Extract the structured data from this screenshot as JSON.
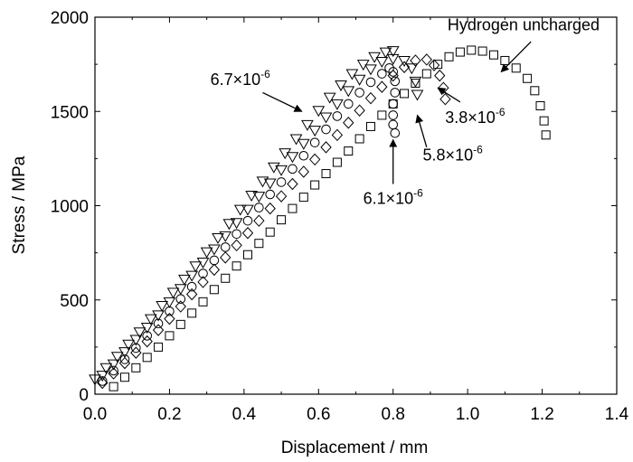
{
  "chart_data": {
    "type": "scatter",
    "title": "",
    "xlabel": "Displacement / mm",
    "ylabel": "Stress / MPa",
    "xlim": [
      0.0,
      1.4
    ],
    "ylim": [
      0,
      2000
    ],
    "x_ticks": [
      "0.0",
      "0.2",
      "0.4",
      "0.6",
      "0.8",
      "1.0",
      "1.2",
      "1.4"
    ],
    "y_ticks": [
      "0",
      "500",
      "1000",
      "1500",
      "2000"
    ],
    "grid": false,
    "legend": "none",
    "series": [
      {
        "id": "uncharged",
        "marker": "square",
        "points": [
          [
            0.05,
            40
          ],
          [
            0.08,
            90
          ],
          [
            0.11,
            140
          ],
          [
            0.14,
            195
          ],
          [
            0.17,
            250
          ],
          [
            0.2,
            310
          ],
          [
            0.23,
            370
          ],
          [
            0.26,
            430
          ],
          [
            0.29,
            490
          ],
          [
            0.32,
            555
          ],
          [
            0.35,
            615
          ],
          [
            0.38,
            680
          ],
          [
            0.41,
            740
          ],
          [
            0.44,
            800
          ],
          [
            0.47,
            860
          ],
          [
            0.5,
            925
          ],
          [
            0.53,
            985
          ],
          [
            0.56,
            1045
          ],
          [
            0.59,
            1110
          ],
          [
            0.62,
            1170
          ],
          [
            0.65,
            1230
          ],
          [
            0.68,
            1290
          ],
          [
            0.71,
            1355
          ],
          [
            0.74,
            1420
          ],
          [
            0.77,
            1480
          ],
          [
            0.8,
            1540
          ],
          [
            0.83,
            1595
          ],
          [
            0.86,
            1650
          ],
          [
            0.89,
            1700
          ],
          [
            0.92,
            1750
          ],
          [
            0.95,
            1790
          ],
          [
            0.98,
            1815
          ],
          [
            1.01,
            1825
          ],
          [
            1.04,
            1820
          ],
          [
            1.07,
            1800
          ],
          [
            1.1,
            1770
          ],
          [
            1.13,
            1730
          ],
          [
            1.16,
            1675
          ],
          [
            1.18,
            1610
          ],
          [
            1.195,
            1530
          ],
          [
            1.205,
            1450
          ],
          [
            1.21,
            1375
          ]
        ]
      },
      {
        "id": "h3.8",
        "marker": "diamond",
        "points": [
          [
            0.02,
            60
          ],
          [
            0.05,
            110
          ],
          [
            0.08,
            165
          ],
          [
            0.11,
            220
          ],
          [
            0.14,
            280
          ],
          [
            0.17,
            340
          ],
          [
            0.2,
            400
          ],
          [
            0.23,
            465
          ],
          [
            0.26,
            530
          ],
          [
            0.29,
            595
          ],
          [
            0.32,
            660
          ],
          [
            0.35,
            725
          ],
          [
            0.38,
            790
          ],
          [
            0.41,
            855
          ],
          [
            0.44,
            920
          ],
          [
            0.47,
            985
          ],
          [
            0.5,
            1050
          ],
          [
            0.53,
            1115
          ],
          [
            0.56,
            1180
          ],
          [
            0.59,
            1245
          ],
          [
            0.62,
            1310
          ],
          [
            0.65,
            1375
          ],
          [
            0.68,
            1440
          ],
          [
            0.71,
            1505
          ],
          [
            0.74,
            1570
          ],
          [
            0.77,
            1630
          ],
          [
            0.8,
            1690
          ],
          [
            0.83,
            1735
          ],
          [
            0.86,
            1770
          ],
          [
            0.89,
            1775
          ],
          [
            0.91,
            1745
          ],
          [
            0.925,
            1690
          ],
          [
            0.935,
            1625
          ],
          [
            0.94,
            1565
          ]
        ]
      },
      {
        "id": "h5.8",
        "marker": "triangle-down",
        "points": [
          [
            0.02,
            100
          ],
          [
            0.05,
            160
          ],
          [
            0.08,
            225
          ],
          [
            0.11,
            290
          ],
          [
            0.14,
            355
          ],
          [
            0.17,
            420
          ],
          [
            0.2,
            490
          ],
          [
            0.23,
            560
          ],
          [
            0.26,
            630
          ],
          [
            0.29,
            700
          ],
          [
            0.32,
            770
          ],
          [
            0.35,
            840
          ],
          [
            0.38,
            910
          ],
          [
            0.41,
            980
          ],
          [
            0.44,
            1050
          ],
          [
            0.47,
            1120
          ],
          [
            0.5,
            1190
          ],
          [
            0.53,
            1260
          ],
          [
            0.56,
            1330
          ],
          [
            0.59,
            1400
          ],
          [
            0.62,
            1470
          ],
          [
            0.65,
            1540
          ],
          [
            0.68,
            1610
          ],
          [
            0.71,
            1670
          ],
          [
            0.74,
            1725
          ],
          [
            0.77,
            1765
          ],
          [
            0.8,
            1780
          ],
          [
            0.83,
            1770
          ],
          [
            0.85,
            1730
          ],
          [
            0.86,
            1660
          ],
          [
            0.865,
            1590
          ]
        ]
      },
      {
        "id": "h6.1",
        "marker": "circle",
        "points": [
          [
            0.02,
            70
          ],
          [
            0.05,
            125
          ],
          [
            0.08,
            185
          ],
          [
            0.11,
            245
          ],
          [
            0.14,
            310
          ],
          [
            0.17,
            375
          ],
          [
            0.2,
            440
          ],
          [
            0.23,
            505
          ],
          [
            0.26,
            570
          ],
          [
            0.29,
            640
          ],
          [
            0.32,
            710
          ],
          [
            0.35,
            780
          ],
          [
            0.38,
            850
          ],
          [
            0.41,
            920
          ],
          [
            0.44,
            990
          ],
          [
            0.47,
            1060
          ],
          [
            0.5,
            1125
          ],
          [
            0.53,
            1195
          ],
          [
            0.56,
            1265
          ],
          [
            0.59,
            1335
          ],
          [
            0.62,
            1405
          ],
          [
            0.65,
            1475
          ],
          [
            0.68,
            1540
          ],
          [
            0.71,
            1600
          ],
          [
            0.74,
            1655
          ],
          [
            0.77,
            1700
          ],
          [
            0.79,
            1730
          ],
          [
            0.8,
            1710
          ],
          [
            0.805,
            1660
          ],
          [
            0.805,
            1600
          ],
          [
            0.8,
            1540
          ],
          [
            0.8,
            1480
          ],
          [
            0.8,
            1430
          ],
          [
            0.805,
            1385
          ]
        ]
      },
      {
        "id": "h6.7",
        "marker": "triangle-down",
        "points": [
          [
            0.0,
            80
          ],
          [
            0.03,
            140
          ],
          [
            0.06,
            200
          ],
          [
            0.09,
            265
          ],
          [
            0.12,
            330
          ],
          [
            0.15,
            400
          ],
          [
            0.18,
            470
          ],
          [
            0.21,
            540
          ],
          [
            0.24,
            610
          ],
          [
            0.27,
            680
          ],
          [
            0.3,
            755
          ],
          [
            0.33,
            830
          ],
          [
            0.36,
            905
          ],
          [
            0.39,
            980
          ],
          [
            0.42,
            1055
          ],
          [
            0.45,
            1130
          ],
          [
            0.48,
            1205
          ],
          [
            0.51,
            1280
          ],
          [
            0.54,
            1355
          ],
          [
            0.57,
            1430
          ],
          [
            0.6,
            1505
          ],
          [
            0.63,
            1575
          ],
          [
            0.66,
            1640
          ],
          [
            0.69,
            1700
          ],
          [
            0.72,
            1750
          ],
          [
            0.75,
            1790
          ],
          [
            0.78,
            1815
          ],
          [
            0.8,
            1822
          ]
        ]
      }
    ],
    "annotations": [
      {
        "id": "uncharged",
        "base": "Hydrogen uncharged",
        "exp": "",
        "text_at": [
          1.15,
          1930
        ],
        "arrow_from": [
          1.17,
          1870
        ],
        "arrow_to": [
          1.09,
          1710
        ]
      },
      {
        "id": "h6.7",
        "base": "6.7×10",
        "exp": "-6",
        "text_at": [
          0.39,
          1640
        ],
        "arrow_from": [
          0.45,
          1600
        ],
        "arrow_to": [
          0.555,
          1500
        ]
      },
      {
        "id": "h3.8",
        "base": "3.8×10",
        "exp": "-6",
        "text_at": [
          1.02,
          1440
        ],
        "arrow_from": [
          0.98,
          1550
        ],
        "arrow_to": [
          0.92,
          1625
        ]
      },
      {
        "id": "h5.8",
        "base": "5.8×10",
        "exp": "-6",
        "text_at": [
          0.96,
          1240
        ],
        "arrow_from": [
          0.89,
          1310
        ],
        "arrow_to": [
          0.865,
          1480
        ]
      },
      {
        "id": "h6.1",
        "base": "6.1×10",
        "exp": "-6",
        "text_at": [
          0.8,
          1010
        ],
        "arrow_from": [
          0.8,
          1115
        ],
        "arrow_to": [
          0.8,
          1350
        ]
      }
    ]
  }
}
